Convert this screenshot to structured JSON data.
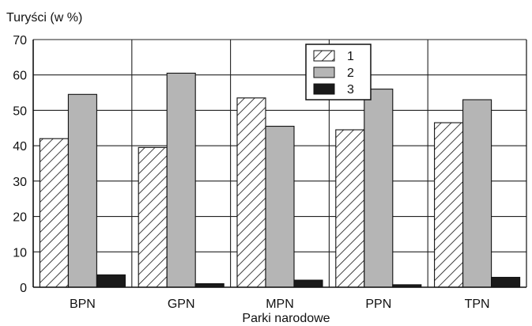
{
  "chart_data": {
    "type": "bar",
    "title": "",
    "ylabel": "Turyści (w %)",
    "xlabel": "Parki narodowe",
    "categories": [
      "BPN",
      "GPN",
      "MPN",
      "PPN",
      "TPN"
    ],
    "series": [
      {
        "name": "1",
        "values": [
          42,
          39.5,
          53.5,
          44.5,
          46.5
        ],
        "pattern": "hatch",
        "color": "#ffffff"
      },
      {
        "name": "2",
        "values": [
          54.5,
          60.5,
          45.5,
          56,
          53
        ],
        "pattern": "solid",
        "color": "#b5b5b5"
      },
      {
        "name": "3",
        "values": [
          3.5,
          1,
          2,
          0.7,
          2.8
        ],
        "pattern": "solid",
        "color": "#1a1a1a"
      }
    ],
    "ylim": [
      0,
      70
    ],
    "yticks": [
      0,
      10,
      20,
      30,
      40,
      50,
      60,
      70
    ],
    "grid": "horizontal-and-category",
    "legend_position": "top-center"
  }
}
